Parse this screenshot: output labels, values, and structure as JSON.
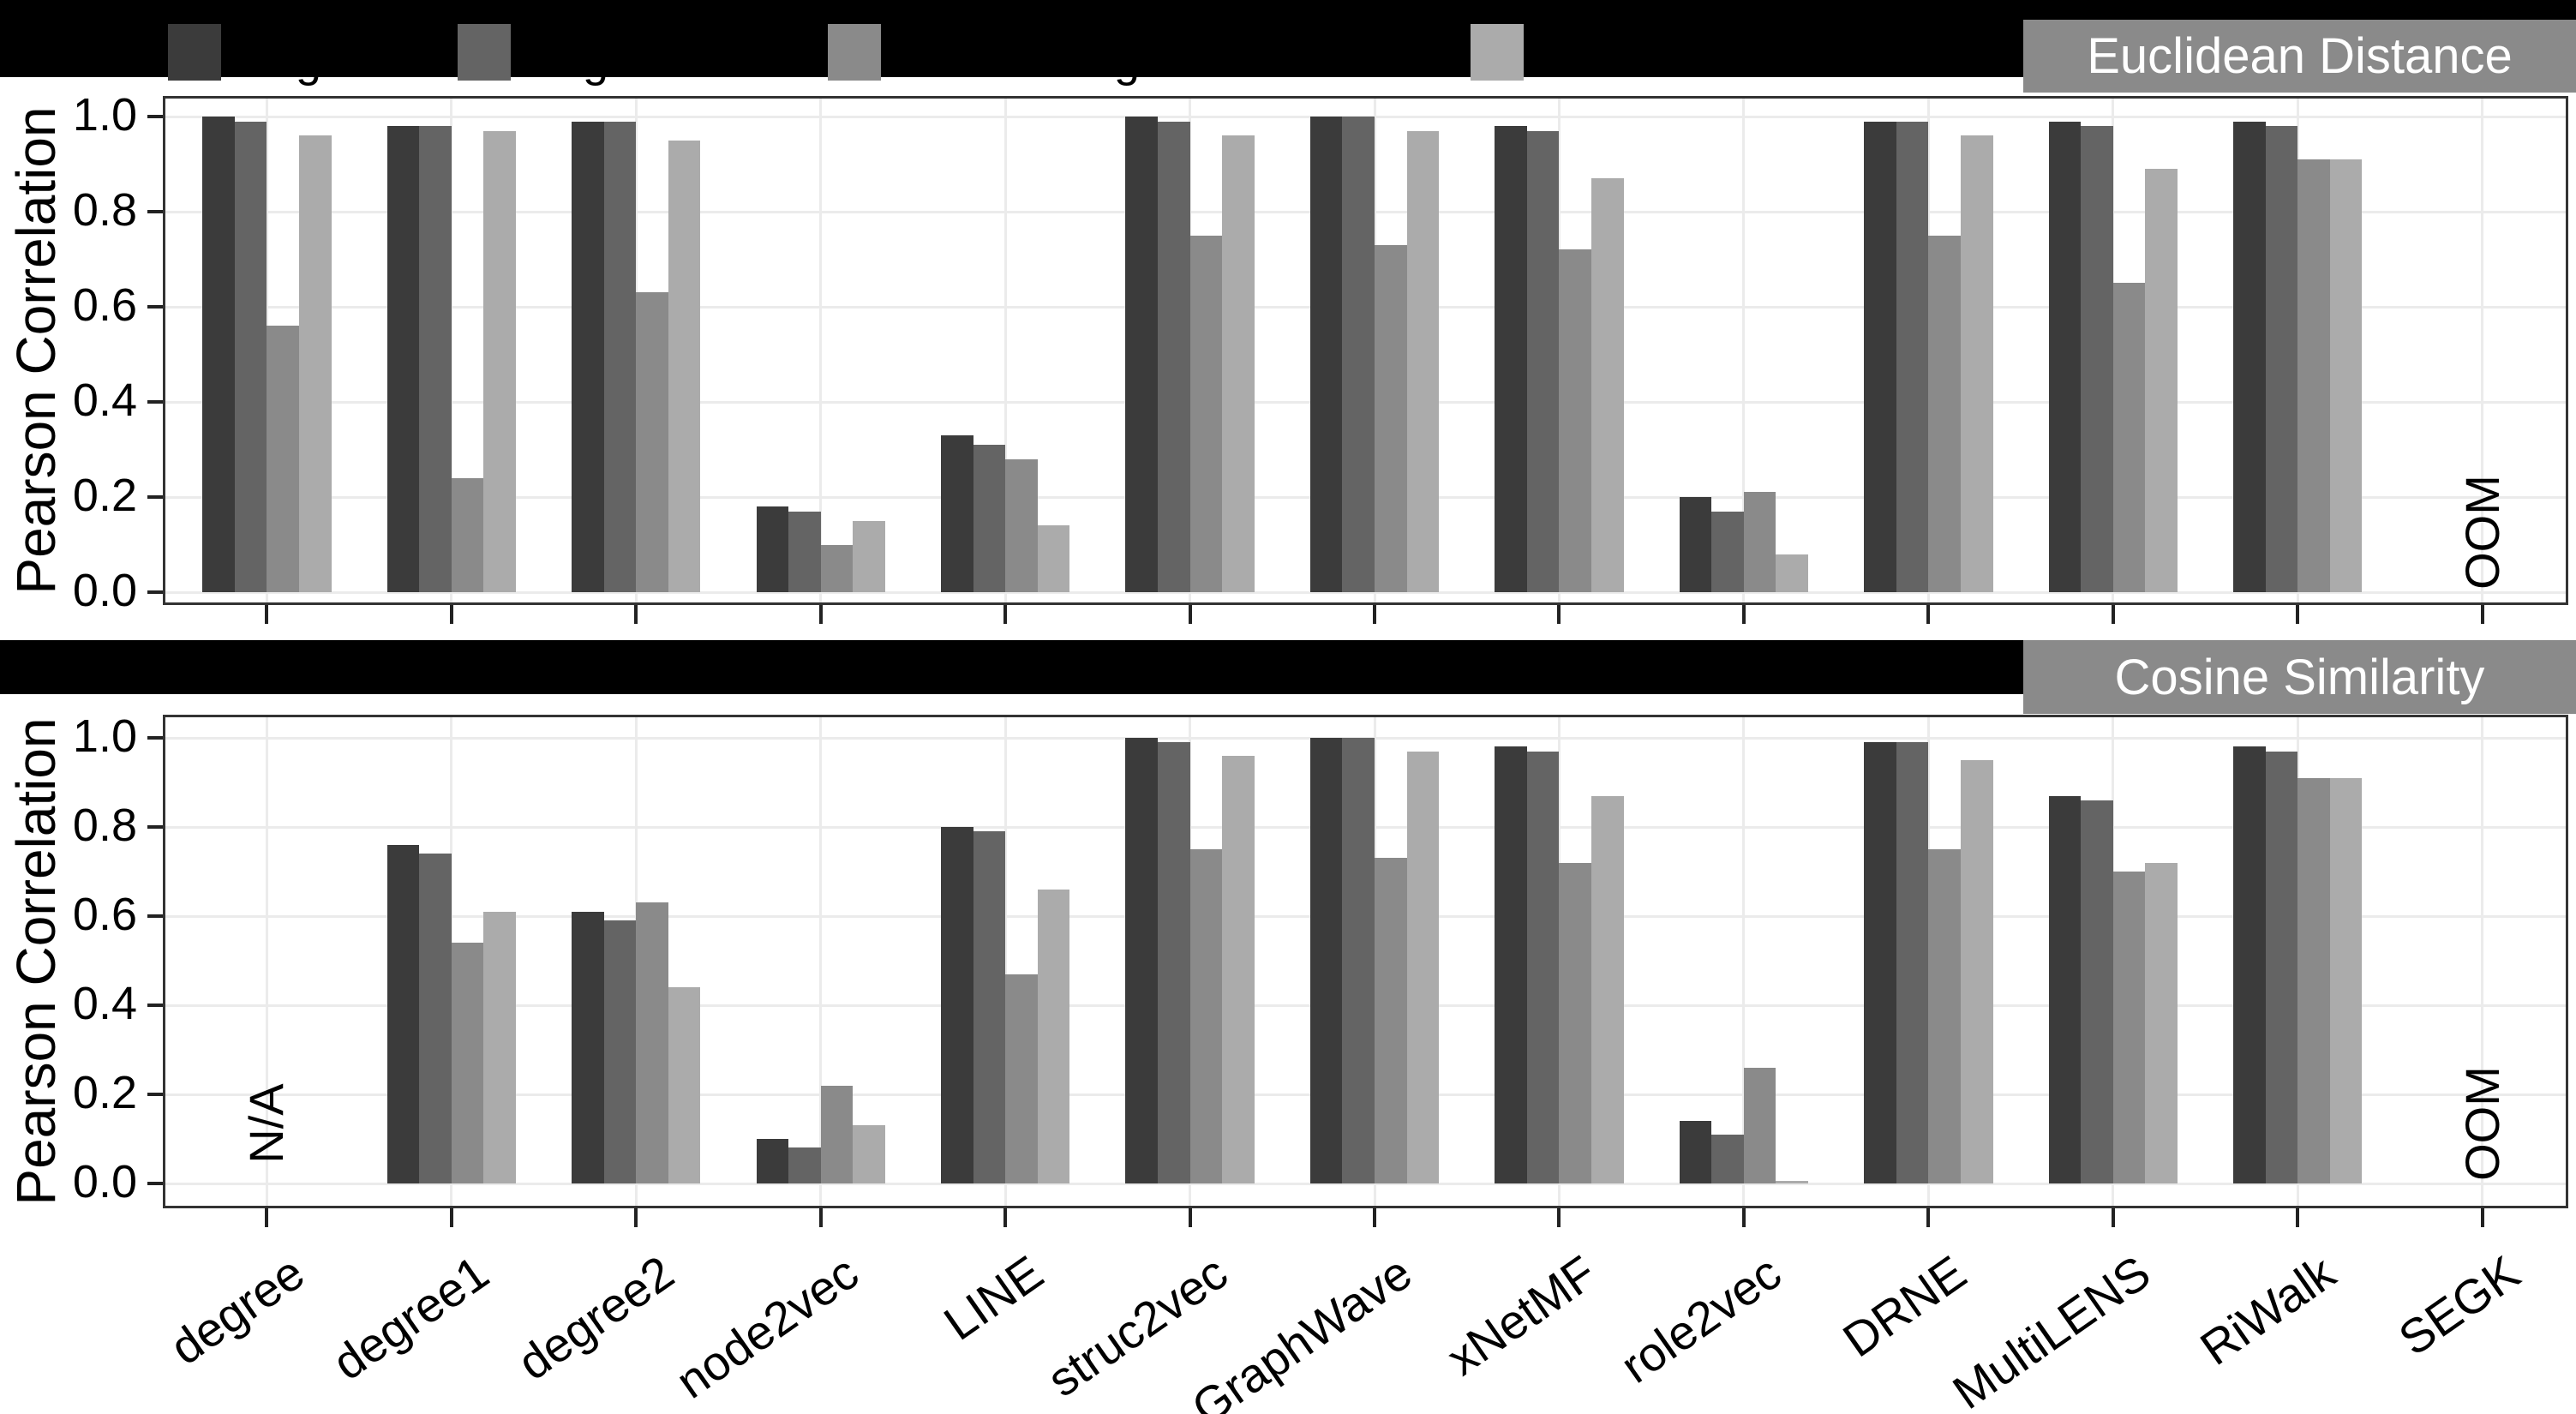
{
  "figure": {
    "y_axis_label": "Pearson Correlation",
    "y_ticks": [
      "1.0",
      "0.8",
      "0.6",
      "0.4",
      "0.2",
      "0.0"
    ],
    "colors": {
      "bar_series": [
        "#3b3b3b",
        "#646464",
        "#8a8a8a",
        "#ababab"
      ],
      "facet_strip_bg": "#8a8a8a",
      "facet_strip_text": "#ffffff",
      "panel_border": "#333333",
      "gridline": "#ebebeb",
      "redaction_bar": "#000000",
      "axis_text": "#000000"
    },
    "legend": {
      "swatch_colors": [
        "#3b3b3b",
        "#646464",
        "#8a8a8a",
        "#ababab"
      ],
      "visible_label_fragments": [
        "g",
        "g",
        "g"
      ],
      "note": "legend labels hidden by black bar; only swatches and g-descenders visible"
    }
  },
  "chart_data": [
    {
      "type": "bar",
      "facet": "Euclidean Distance",
      "ylabel": "Pearson Correlation",
      "ylim": [
        0.0,
        1.04
      ],
      "grid": "on",
      "legend_position": "top (obscured)",
      "categories": [
        "degree",
        "degree1",
        "degree2",
        "node2vec",
        "LINE",
        "struc2vec",
        "GraphWave",
        "xNetMF",
        "role2vec",
        "DRNE",
        "MultiLENS",
        "RiWalk",
        "SEGK"
      ],
      "series": [
        {
          "name": "",
          "color": "#3b3b3b",
          "values": [
            1.0,
            0.98,
            0.99,
            0.18,
            0.33,
            1.0,
            1.0,
            0.98,
            0.2,
            0.99,
            0.99,
            0.99,
            null
          ]
        },
        {
          "name": "",
          "color": "#646464",
          "values": [
            0.99,
            0.98,
            0.99,
            0.17,
            0.31,
            0.99,
            1.0,
            0.97,
            0.17,
            0.99,
            0.98,
            0.98,
            null
          ]
        },
        {
          "name": "",
          "color": "#8a8a8a",
          "values": [
            0.56,
            0.24,
            0.63,
            0.1,
            0.28,
            0.75,
            0.73,
            0.72,
            0.21,
            0.75,
            0.65,
            0.91,
            null
          ]
        },
        {
          "name": "",
          "color": "#ababab",
          "values": [
            0.96,
            0.97,
            0.95,
            0.15,
            0.14,
            0.96,
            0.97,
            0.87,
            0.08,
            0.96,
            0.89,
            0.91,
            null
          ]
        }
      ],
      "annotations": [
        {
          "category": "SEGK",
          "text": "OOM"
        }
      ]
    },
    {
      "type": "bar",
      "facet": "Cosine Similarity",
      "ylabel": "Pearson Correlation",
      "ylim": [
        0.0,
        1.04
      ],
      "grid": "on",
      "legend_position": "none",
      "categories": [
        "degree",
        "degree1",
        "degree2",
        "node2vec",
        "LINE",
        "struc2vec",
        "GraphWave",
        "xNetMF",
        "role2vec",
        "DRNE",
        "MultiLENS",
        "RiWalk",
        "SEGK"
      ],
      "series": [
        {
          "name": "",
          "color": "#3b3b3b",
          "values": [
            null,
            0.76,
            0.61,
            0.1,
            0.8,
            1.0,
            1.0,
            0.98,
            0.14,
            0.99,
            0.87,
            0.98,
            null
          ]
        },
        {
          "name": "",
          "color": "#646464",
          "values": [
            null,
            0.74,
            0.59,
            0.08,
            0.79,
            0.99,
            1.0,
            0.97,
            0.11,
            0.99,
            0.86,
            0.97,
            null
          ]
        },
        {
          "name": "",
          "color": "#8a8a8a",
          "values": [
            null,
            0.54,
            0.63,
            0.22,
            0.47,
            0.75,
            0.73,
            0.72,
            0.26,
            0.75,
            0.7,
            0.91,
            null
          ]
        },
        {
          "name": "",
          "color": "#ababab",
          "values": [
            null,
            0.61,
            0.44,
            0.13,
            0.66,
            0.96,
            0.97,
            0.87,
            0.005,
            0.95,
            0.72,
            0.91,
            null
          ]
        }
      ],
      "annotations": [
        {
          "category": "degree",
          "text": "N/A"
        },
        {
          "category": "SEGK",
          "text": "OOM"
        }
      ]
    }
  ]
}
